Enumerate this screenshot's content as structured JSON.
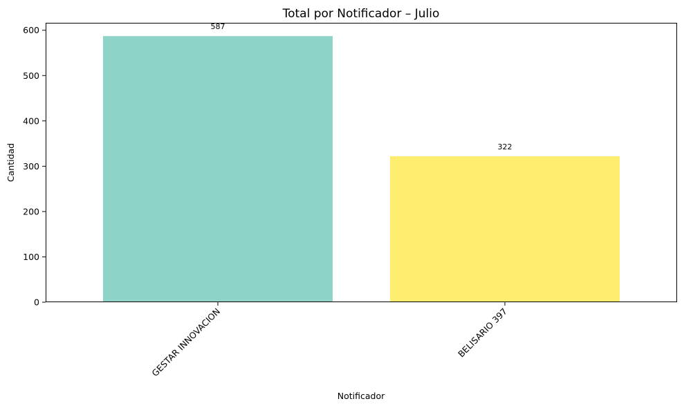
{
  "chart_data": {
    "type": "bar",
    "title": "Total por Notificador – Julio",
    "xlabel": "Notificador",
    "ylabel": "Cantidad",
    "categories": [
      "GESTAR INNOVACION",
      "BELISARIO 397"
    ],
    "values": [
      587,
      322
    ],
    "value_labels": [
      "587",
      "322"
    ],
    "bar_colors": [
      "#8dd3c7",
      "#ffed6f"
    ],
    "ylim": [
      0,
      616.35
    ],
    "yticks": [
      0,
      100,
      200,
      300,
      400,
      500,
      600
    ],
    "ytick_labels": [
      "0",
      "100",
      "200",
      "300",
      "400",
      "500",
      "600"
    ],
    "xtick_rotation": "45 degrees, right-aligned",
    "grid": false,
    "legend": "none"
  }
}
